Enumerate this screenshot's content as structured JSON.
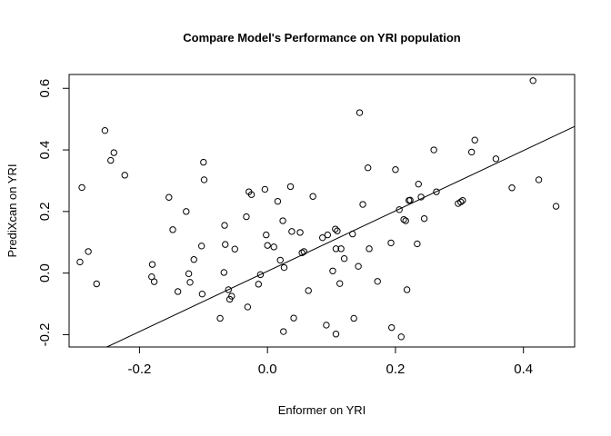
{
  "chart_data": {
    "type": "scatter",
    "title": "Compare Model's Performance on YRI population",
    "xlabel": "Enformer on YRI",
    "ylabel": "PrediXcan on YRI",
    "xlim": [
      -0.31,
      0.48
    ],
    "ylim": [
      -0.24,
      0.645
    ],
    "xticks": [
      -0.2,
      0.0,
      0.2,
      0.4
    ],
    "xtick_labels": [
      "-0.2",
      "0.0",
      "0.2",
      "0.4"
    ],
    "yticks": [
      -0.2,
      0.0,
      0.2,
      0.4,
      0.6
    ],
    "ytick_labels": [
      "-0.2",
      "0.0",
      "0.2",
      "0.4",
      "0.6"
    ],
    "grid": false,
    "legend": "none",
    "marker": "open-circle",
    "colors": {
      "points": "#000000",
      "line": "#000000",
      "axes": "#000000"
    },
    "fit_line": {
      "slope": 0.98,
      "intercept": 0.006
    },
    "points": [
      {
        "x": -0.293,
        "y": 0.036
      },
      {
        "x": -0.29,
        "y": 0.278
      },
      {
        "x": -0.28,
        "y": 0.07
      },
      {
        "x": -0.267,
        "y": -0.035
      },
      {
        "x": -0.254,
        "y": 0.463
      },
      {
        "x": -0.245,
        "y": 0.366
      },
      {
        "x": -0.24,
        "y": 0.391
      },
      {
        "x": -0.223,
        "y": 0.318
      },
      {
        "x": -0.181,
        "y": -0.012
      },
      {
        "x": -0.18,
        "y": 0.028
      },
      {
        "x": -0.177,
        "y": -0.028
      },
      {
        "x": -0.154,
        "y": 0.246
      },
      {
        "x": -0.148,
        "y": 0.141
      },
      {
        "x": -0.14,
        "y": -0.06
      },
      {
        "x": -0.127,
        "y": 0.2
      },
      {
        "x": -0.123,
        "y": -0.002
      },
      {
        "x": -0.121,
        "y": -0.03
      },
      {
        "x": -0.115,
        "y": 0.044
      },
      {
        "x": -0.103,
        "y": 0.088
      },
      {
        "x": -0.102,
        "y": -0.068
      },
      {
        "x": -0.099,
        "y": 0.303
      },
      {
        "x": -0.1,
        "y": 0.36
      },
      {
        "x": -0.074,
        "y": -0.147
      },
      {
        "x": -0.068,
        "y": 0.002
      },
      {
        "x": -0.067,
        "y": 0.155
      },
      {
        "x": -0.066,
        "y": 0.093
      },
      {
        "x": -0.061,
        "y": -0.054
      },
      {
        "x": -0.059,
        "y": -0.085
      },
      {
        "x": -0.056,
        "y": -0.075
      },
      {
        "x": -0.051,
        "y": 0.078
      },
      {
        "x": -0.033,
        "y": 0.183
      },
      {
        "x": -0.031,
        "y": -0.11
      },
      {
        "x": -0.029,
        "y": 0.264
      },
      {
        "x": -0.025,
        "y": 0.255
      },
      {
        "x": -0.014,
        "y": -0.036
      },
      {
        "x": -0.011,
        "y": -0.005
      },
      {
        "x": -0.004,
        "y": 0.272
      },
      {
        "x": -0.002,
        "y": 0.124
      },
      {
        "x": 0.0,
        "y": 0.09
      },
      {
        "x": 0.01,
        "y": 0.085
      },
      {
        "x": 0.016,
        "y": 0.233
      },
      {
        "x": 0.02,
        "y": 0.042
      },
      {
        "x": 0.024,
        "y": 0.17
      },
      {
        "x": 0.025,
        "y": -0.19
      },
      {
        "x": 0.026,
        "y": 0.018
      },
      {
        "x": 0.036,
        "y": 0.281
      },
      {
        "x": 0.038,
        "y": 0.135
      },
      {
        "x": 0.041,
        "y": -0.146
      },
      {
        "x": 0.051,
        "y": 0.132
      },
      {
        "x": 0.054,
        "y": 0.066
      },
      {
        "x": 0.057,
        "y": 0.07
      },
      {
        "x": 0.064,
        "y": -0.057
      },
      {
        "x": 0.071,
        "y": 0.249
      },
      {
        "x": 0.086,
        "y": 0.115
      },
      {
        "x": 0.094,
        "y": 0.124
      },
      {
        "x": 0.092,
        "y": -0.169
      },
      {
        "x": 0.102,
        "y": 0.007
      },
      {
        "x": 0.106,
        "y": 0.143
      },
      {
        "x": 0.107,
        "y": 0.079
      },
      {
        "x": 0.107,
        "y": -0.198
      },
      {
        "x": 0.109,
        "y": 0.137
      },
      {
        "x": 0.113,
        "y": -0.034
      },
      {
        "x": 0.115,
        "y": 0.079
      },
      {
        "x": 0.12,
        "y": 0.047
      },
      {
        "x": 0.133,
        "y": 0.127
      },
      {
        "x": 0.135,
        "y": -0.147
      },
      {
        "x": 0.142,
        "y": 0.022
      },
      {
        "x": 0.144,
        "y": 0.521
      },
      {
        "x": 0.149,
        "y": 0.223
      },
      {
        "x": 0.157,
        "y": 0.342
      },
      {
        "x": 0.159,
        "y": 0.079
      },
      {
        "x": 0.172,
        "y": -0.027
      },
      {
        "x": 0.193,
        "y": 0.098
      },
      {
        "x": 0.194,
        "y": -0.177
      },
      {
        "x": 0.2,
        "y": 0.336
      },
      {
        "x": 0.206,
        "y": 0.206
      },
      {
        "x": 0.209,
        "y": -0.207
      },
      {
        "x": 0.213,
        "y": 0.174
      },
      {
        "x": 0.216,
        "y": 0.17
      },
      {
        "x": 0.218,
        "y": -0.054
      },
      {
        "x": 0.221,
        "y": 0.236
      },
      {
        "x": 0.223,
        "y": 0.237
      },
      {
        "x": 0.234,
        "y": 0.095
      },
      {
        "x": 0.236,
        "y": 0.289
      },
      {
        "x": 0.24,
        "y": 0.247
      },
      {
        "x": 0.245,
        "y": 0.177
      },
      {
        "x": 0.26,
        "y": 0.4
      },
      {
        "x": 0.264,
        "y": 0.264
      },
      {
        "x": 0.298,
        "y": 0.226
      },
      {
        "x": 0.302,
        "y": 0.231
      },
      {
        "x": 0.305,
        "y": 0.236
      },
      {
        "x": 0.319,
        "y": 0.393
      },
      {
        "x": 0.324,
        "y": 0.432
      },
      {
        "x": 0.357,
        "y": 0.371
      },
      {
        "x": 0.382,
        "y": 0.277
      },
      {
        "x": 0.415,
        "y": 0.625
      },
      {
        "x": 0.424,
        "y": 0.303
      },
      {
        "x": 0.451,
        "y": 0.217
      }
    ]
  }
}
